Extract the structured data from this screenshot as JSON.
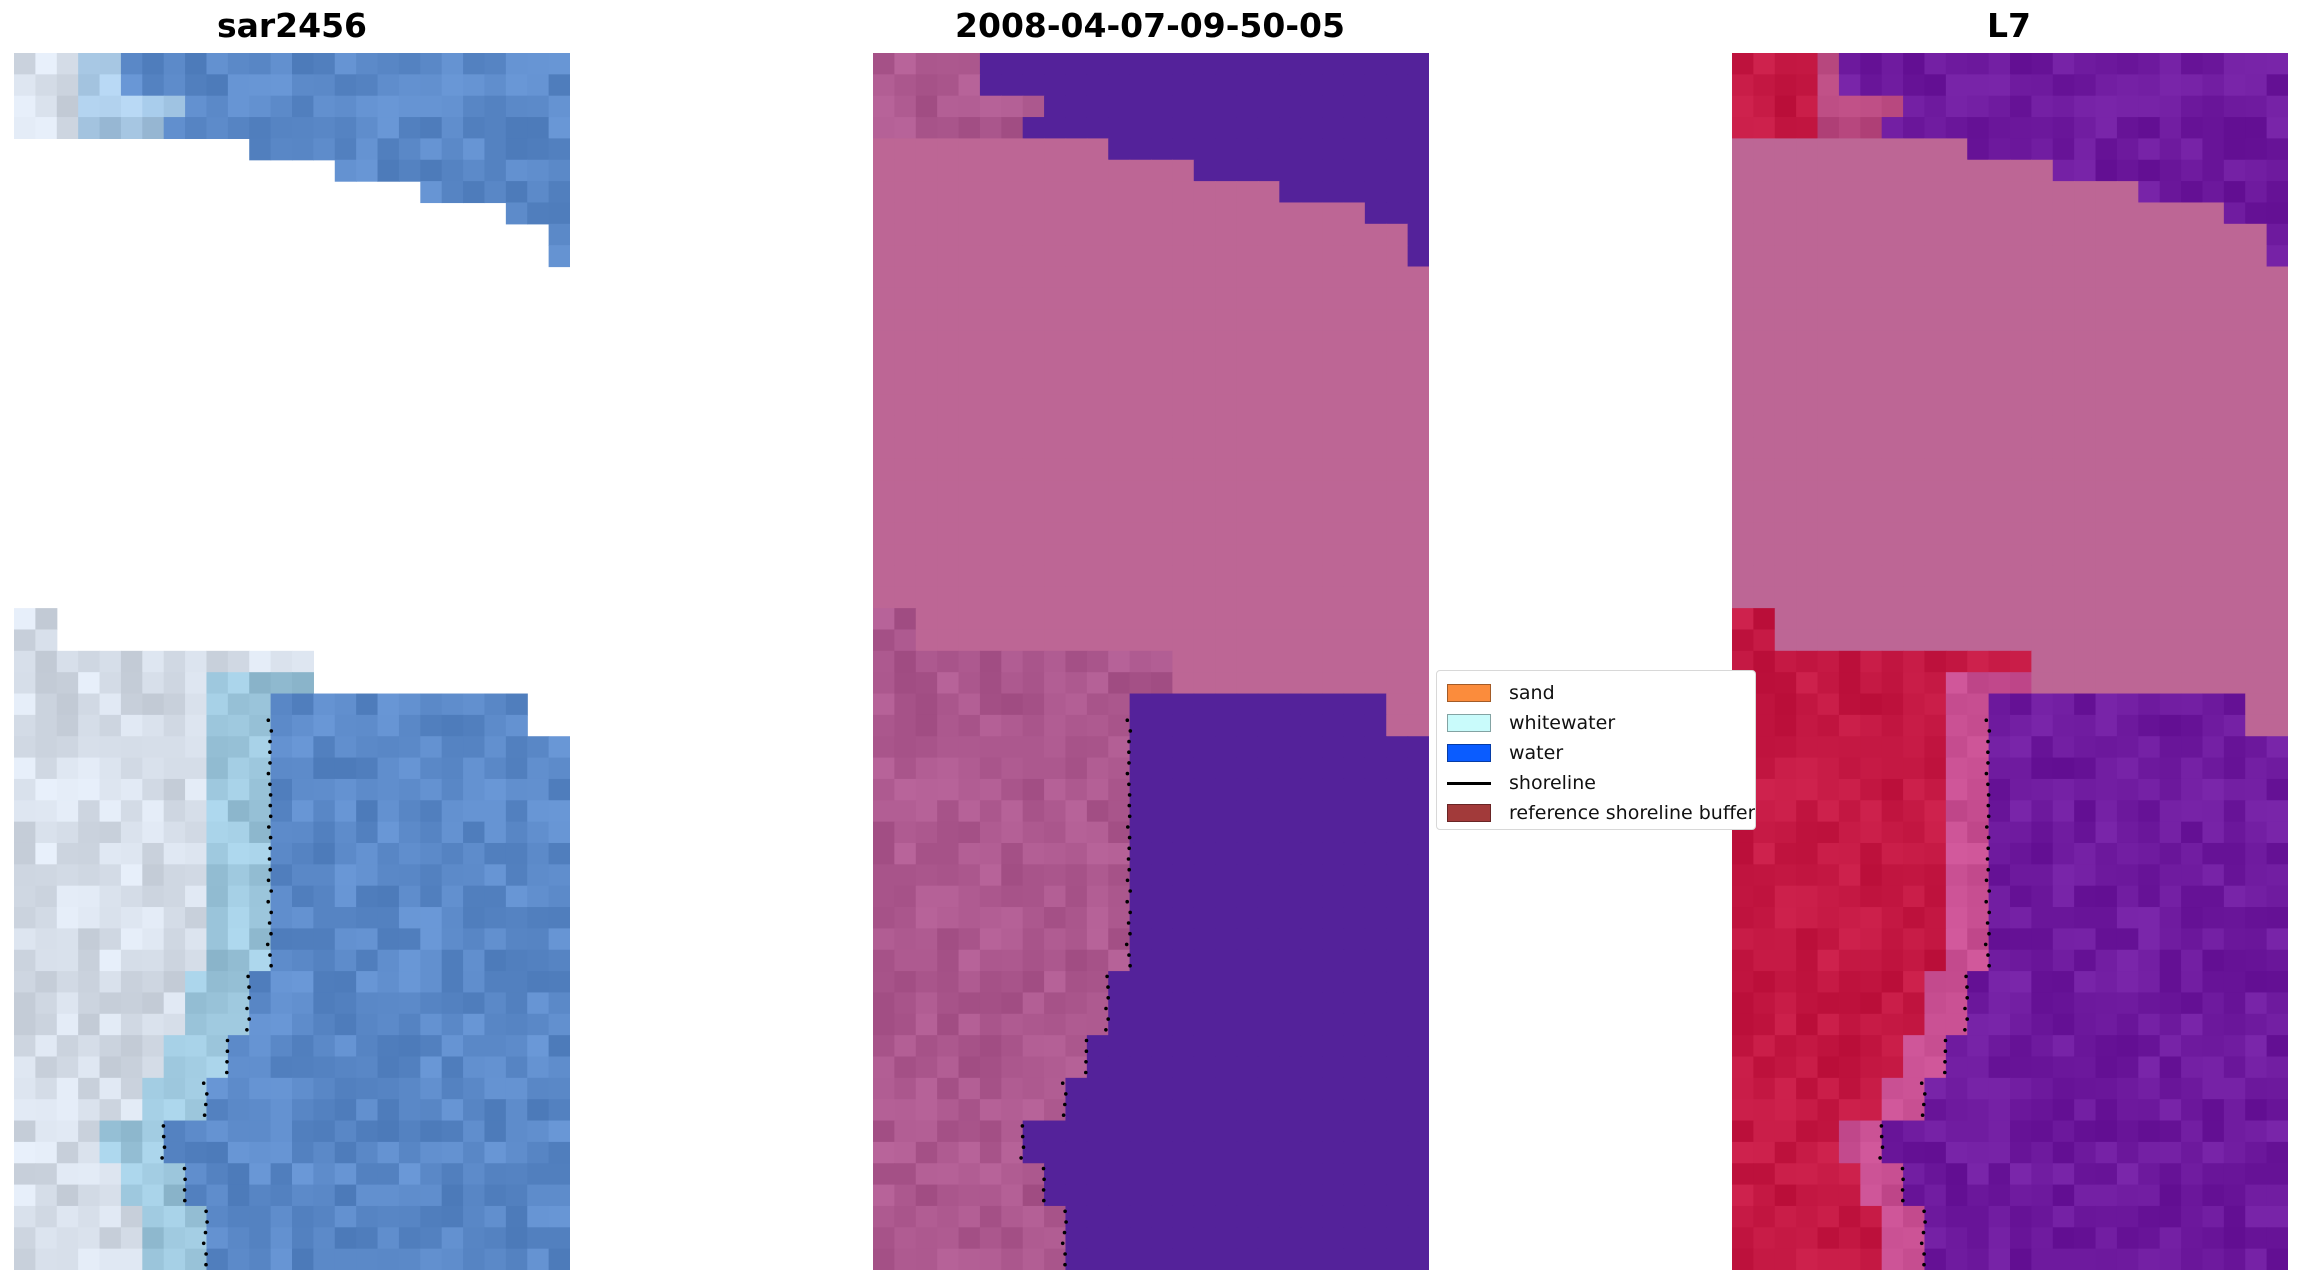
{
  "titles": {
    "left": "sar2456",
    "middle": "2008-04-07-09-50-05",
    "right": "L7"
  },
  "legend": [
    {
      "label": "sand",
      "color": "#fb8c3c",
      "kind": "patch"
    },
    {
      "label": "whitewater",
      "color": "#c9fbfb",
      "kind": "patch"
    },
    {
      "label": "water",
      "color": "#0a5cff",
      "kind": "patch"
    },
    {
      "label": "shoreline",
      "color": "#000000",
      "kind": "line"
    },
    {
      "label": "reference shoreline buffer",
      "color": "#a23a3a",
      "kind": "patch"
    }
  ],
  "colors": {
    "sar_water": "#5b89c8",
    "sar_land": "#d5dde8",
    "class_water": "#54229a",
    "class_land": "#b8649a",
    "class_nodata": "#bd6695",
    "ir_water": "#6e1a9e",
    "ir_land": "#c41843",
    "ir_nodata": "#bd6695"
  }
}
